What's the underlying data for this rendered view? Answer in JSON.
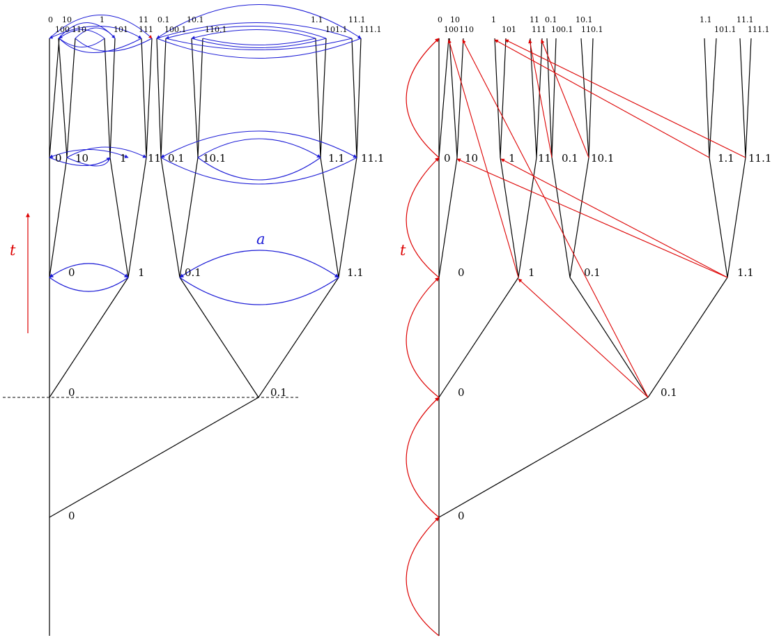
{
  "left_panel": {
    "time_label": "t",
    "arc_label": "a",
    "level1_labels": [
      "0"
    ],
    "level2_labels": [
      "0",
      "0.1"
    ],
    "level3_labels": [
      "0",
      "1",
      "0.1",
      "1.1"
    ],
    "level4_labels": [
      "0",
      "10",
      "1",
      "11",
      "0.1",
      "10.1",
      "1.1",
      "11.1"
    ],
    "top_labels_upper": [
      "0",
      "10",
      "1",
      "11",
      "0.1",
      "10.1",
      "1.1",
      "11.1"
    ],
    "top_labels_lower": [
      "100",
      "110",
      "101",
      "111",
      "100.1",
      "110.1",
      "101.1",
      "111.1"
    ]
  },
  "right_panel": {
    "time_label": "t",
    "level1_labels": [
      "0"
    ],
    "level2_labels": [
      "0",
      "0.1"
    ],
    "level3_labels": [
      "0",
      "1",
      "0.1",
      "1.1"
    ],
    "level4_labels": [
      "0",
      "10",
      "1",
      "11",
      "0.1",
      "10.1",
      "1.1",
      "11.1"
    ],
    "top_labels_upper": [
      "0",
      "10",
      "1",
      "11",
      "0.1",
      "10.1",
      "1.1",
      "11.1"
    ],
    "top_labels_lower": [
      "100",
      "110",
      "101",
      "111",
      "100.1",
      "110.1",
      "101.1",
      "111.1"
    ]
  },
  "colors": {
    "tree": "#000000",
    "blue_arcs": "#1a1ad6",
    "red_arcs": "#dd0000"
  }
}
